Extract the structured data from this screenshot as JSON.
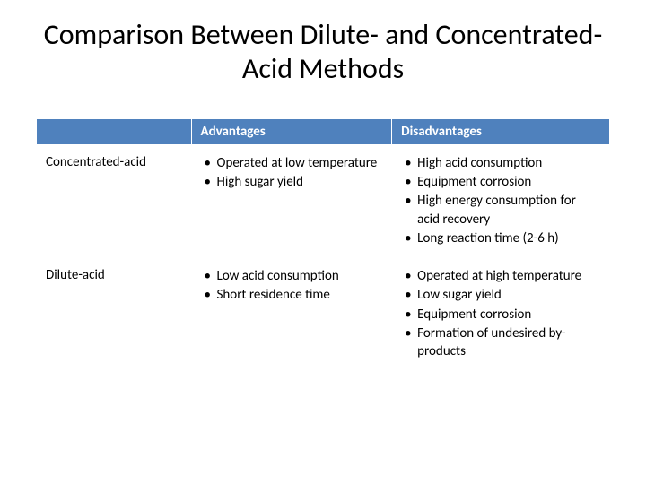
{
  "title": "Comparison Between Dilute- and Concentrated-Acid Methods",
  "table": {
    "type": "table",
    "columns": [
      "",
      "Advantages",
      "Disadvantages"
    ],
    "column_widths_pct": [
      27,
      35,
      38
    ],
    "header_bg": "#4f81bd",
    "header_fg": "#ffffff",
    "cell_bg": "#ffffff",
    "cell_fg": "#000000",
    "font_size_pt": 15,
    "title_fontsize_pt": 32,
    "rows": [
      {
        "label": "Concentrated-acid",
        "advantages": [
          "Operated at low temperature",
          "High sugar yield"
        ],
        "disadvantages": [
          "High acid consumption",
          "Equipment corrosion",
          "High energy consumption for acid recovery",
          "Long reaction time (2-6 h)"
        ]
      },
      {
        "label": "Dilute-acid",
        "advantages": [
          "Low acid consumption",
          "Short residence time"
        ],
        "disadvantages": [
          "Operated at high temperature",
          "Low sugar yield",
          "Equipment corrosion",
          "Formation of undesired by-products"
        ]
      }
    ]
  }
}
